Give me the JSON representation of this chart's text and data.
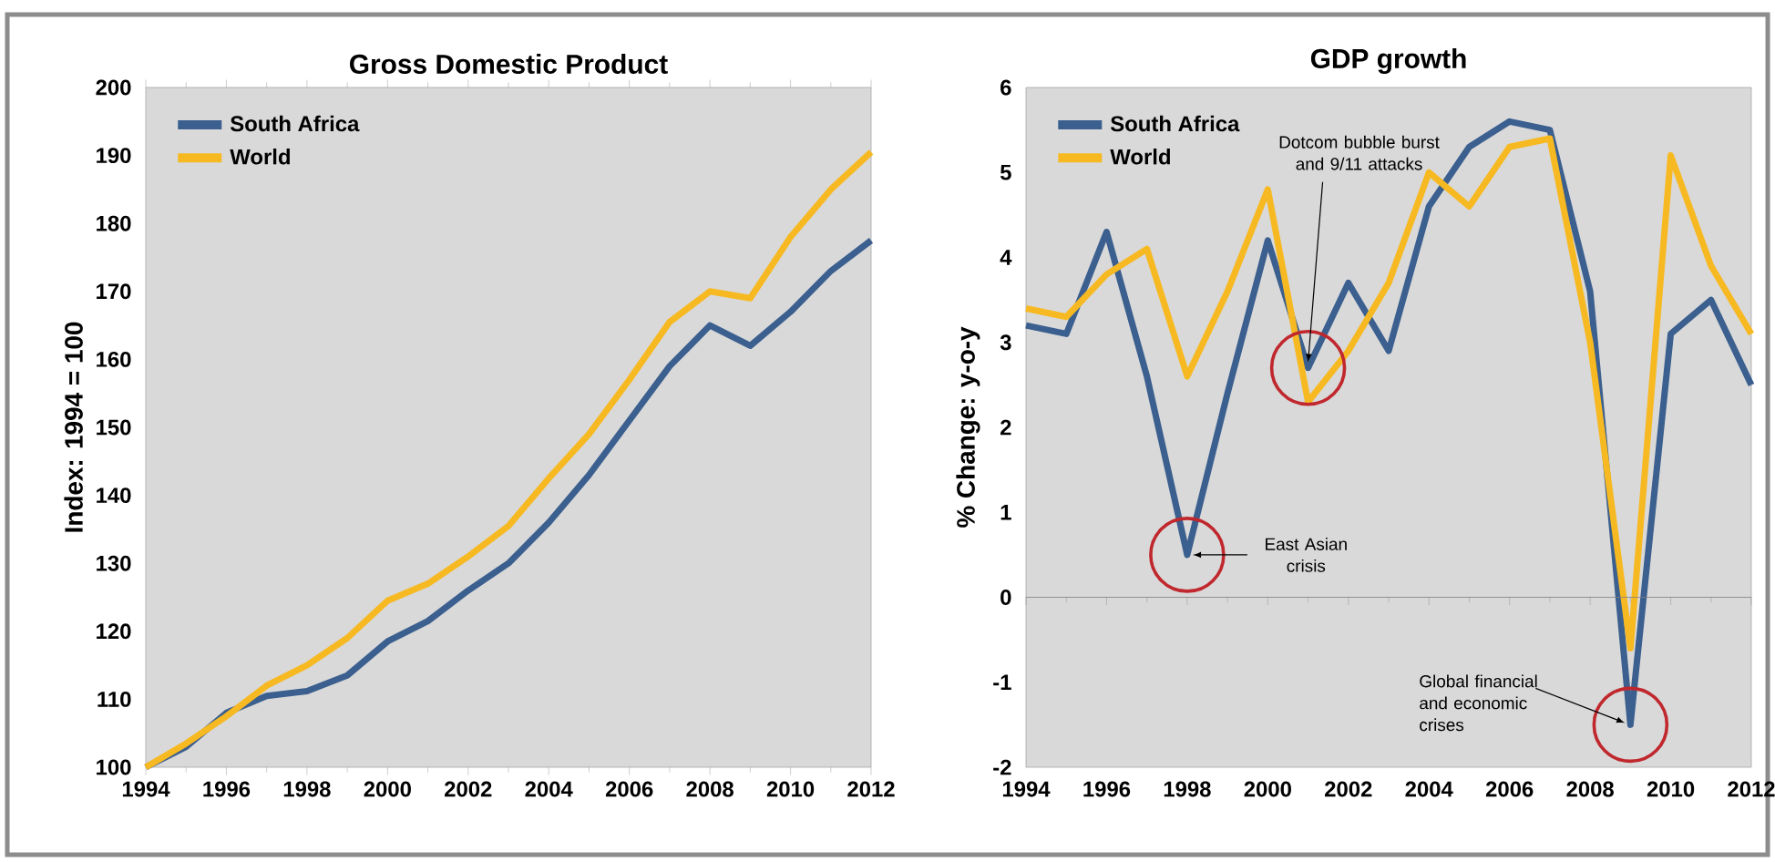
{
  "chart_data": [
    {
      "type": "line",
      "title": "Gross Domestic Product",
      "ylabel": "Index: 1994 = 100",
      "x": [
        1994,
        1995,
        1996,
        1997,
        1998,
        1999,
        2000,
        2001,
        2002,
        2003,
        2004,
        2005,
        2006,
        2007,
        2008,
        2009,
        2010,
        2011,
        2012
      ],
      "series": [
        {
          "name": "South Africa",
          "color": "#3b5f8e",
          "values": [
            100,
            103,
            108,
            110.5,
            111.2,
            113.5,
            118.5,
            121.5,
            126,
            130,
            136,
            143,
            151,
            159,
            165,
            162,
            167,
            173,
            177.5
          ]
        },
        {
          "name": "World",
          "color": "#f7b922",
          "values": [
            100,
            103.5,
            107.5,
            112,
            115,
            119,
            124.5,
            127,
            131,
            135.5,
            142.5,
            149,
            157,
            165.5,
            170,
            169,
            178,
            185,
            190.5
          ]
        }
      ],
      "xlim": [
        1994,
        2012
      ],
      "xticks": [
        1994,
        1996,
        1998,
        2000,
        2002,
        2004,
        2006,
        2008,
        2010,
        2012
      ],
      "ylim": [
        100,
        200
      ],
      "yticks": [
        100,
        110,
        120,
        130,
        140,
        150,
        160,
        170,
        180,
        190,
        200
      ],
      "legend": "top left",
      "marker": "none",
      "line_style": "solid"
    },
    {
      "type": "line",
      "title": "GDP growth",
      "ylabel": "% Change: y-o-y",
      "x": [
        1994,
        1995,
        1996,
        1997,
        1998,
        1999,
        2000,
        2001,
        2002,
        2003,
        2004,
        2005,
        2006,
        2007,
        2008,
        2009,
        2010,
        2011,
        2012
      ],
      "series": [
        {
          "name": "South Africa",
          "color": "#3b5f8e",
          "values": [
            3.2,
            3.1,
            4.3,
            2.6,
            0.5,
            2.4,
            4.2,
            2.7,
            3.7,
            2.9,
            4.6,
            5.3,
            5.6,
            5.5,
            3.6,
            -1.5,
            3.1,
            3.5,
            2.5
          ]
        },
        {
          "name": "World",
          "color": "#f7b922",
          "values": [
            3.4,
            3.3,
            3.8,
            4.1,
            2.6,
            3.6,
            4.8,
            2.3,
            2.9,
            3.7,
            5.0,
            4.6,
            5.3,
            5.4,
            3.0,
            -0.6,
            5.2,
            3.9,
            3.1
          ]
        }
      ],
      "xlim": [
        1994,
        2012
      ],
      "xticks": [
        1994,
        1996,
        1998,
        2000,
        2002,
        2004,
        2006,
        2008,
        2010,
        2012
      ],
      "ylim": [
        -2,
        6
      ],
      "yticks": [
        -2,
        -1,
        0,
        1,
        2,
        3,
        4,
        5,
        6
      ],
      "legend": "top left",
      "marker": "none",
      "line_style": "solid",
      "annotations": [
        {
          "text": "East Asian crisis",
          "x": 1998,
          "y": 0.5
        },
        {
          "text": "Dotcom bubble burst and 9/11 attacks",
          "x": 2001,
          "y": 2.7
        },
        {
          "text": "Global financial and economic crises",
          "x": 2009,
          "y": -1.5
        }
      ]
    }
  ]
}
